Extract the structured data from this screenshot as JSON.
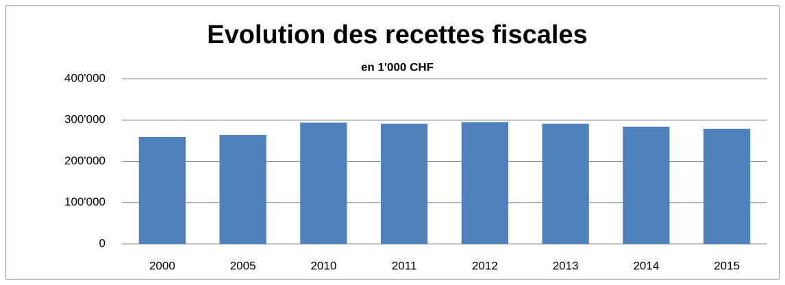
{
  "chart_data": {
    "type": "bar",
    "title": "Evolution des recettes fiscales",
    "subtitle": "en 1'000 CHF",
    "categories": [
      "2000",
      "2005",
      "2010",
      "2011",
      "2012",
      "2013",
      "2014",
      "2015"
    ],
    "values": [
      259000,
      264000,
      294000,
      291000,
      295000,
      291000,
      284000,
      279000
    ],
    "color": "#4f81bd",
    "ylim": [
      0,
      400000
    ],
    "yticks": [
      0,
      {
        "value": 100000,
        "label": "100'000"
      },
      {
        "value": 200000,
        "label": "200'000"
      },
      {
        "value": 300000,
        "label": "300'000"
      },
      {
        "value": 400000,
        "label": "400'000"
      }
    ],
    "grid": true
  }
}
